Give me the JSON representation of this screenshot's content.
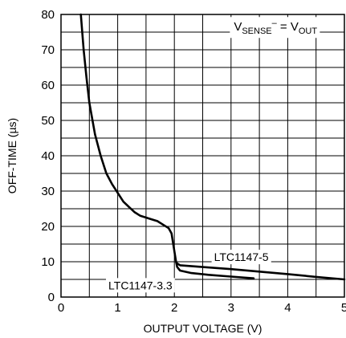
{
  "chart_data": {
    "type": "line",
    "title": "",
    "xlabel": "OUTPUT VOLTAGE (V)",
    "ylabel": "OFF-TIME (µs)",
    "xlim": [
      0,
      5
    ],
    "ylim": [
      0,
      80
    ],
    "x_ticks": [
      "0",
      "1",
      "2",
      "3",
      "4",
      "5"
    ],
    "y_ticks": [
      "0",
      "10",
      "20",
      "30",
      "40",
      "50",
      "60",
      "70",
      "80"
    ],
    "grid": true,
    "annotation": {
      "v": "V",
      "sense_sub": "SENSE",
      "sup": "–",
      "equals": " = V",
      "out_sub": "OUT"
    },
    "series": [
      {
        "name": "LTC1147-5",
        "x": [
          0.35,
          0.4,
          0.45,
          0.5,
          0.6,
          0.7,
          0.8,
          0.9,
          1.0,
          1.1,
          1.2,
          1.3,
          1.4,
          1.5,
          1.6,
          1.7,
          1.8,
          1.9,
          1.95,
          2.0,
          2.03,
          2.05,
          2.1,
          2.5,
          3.0,
          3.5,
          4.0,
          4.5,
          5.0
        ],
        "y": [
          80,
          70,
          62,
          55,
          46,
          40,
          35,
          32,
          29.5,
          27,
          25.5,
          24,
          23,
          22.5,
          22,
          21.5,
          20.5,
          19.5,
          18,
          13,
          10,
          9.5,
          9,
          8.5,
          7.9,
          7.2,
          6.5,
          5.7,
          5
        ]
      },
      {
        "name": "LTC1147-3.3",
        "x": [
          2.03,
          2.05,
          2.1,
          2.3,
          2.6,
          3.0,
          3.4
        ],
        "y": [
          10,
          8.5,
          7.5,
          6.8,
          6.3,
          5.8,
          5.3
        ]
      }
    ]
  }
}
